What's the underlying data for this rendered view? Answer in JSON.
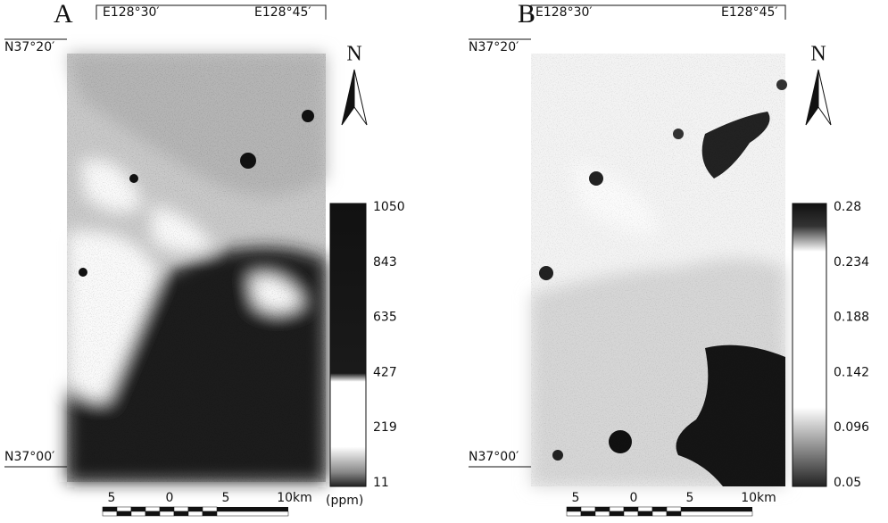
{
  "panels": [
    {
      "label": "A",
      "lon_labels": [
        "E128°30′",
        "E128°45′"
      ],
      "lat_labels": [
        "N37°20′",
        "N37°00′"
      ],
      "north": "N",
      "colorbar": {
        "ticks": [
          1050,
          843,
          635,
          427,
          219,
          11
        ],
        "unit": "(ppm)"
      },
      "scale": [
        "5",
        "0",
        "5",
        "10km"
      ]
    },
    {
      "label": "B",
      "lon_labels": [
        "E128°30′",
        "E128°45′"
      ],
      "lat_labels": [
        "N37°20′",
        "N37°00′"
      ],
      "north": "N",
      "colorbar": {
        "ticks": [
          0.28,
          0.234,
          0.188,
          0.142,
          0.096,
          0.05
        ]
      },
      "scale": [
        "5",
        "0",
        "5",
        "10km"
      ]
    }
  ]
}
